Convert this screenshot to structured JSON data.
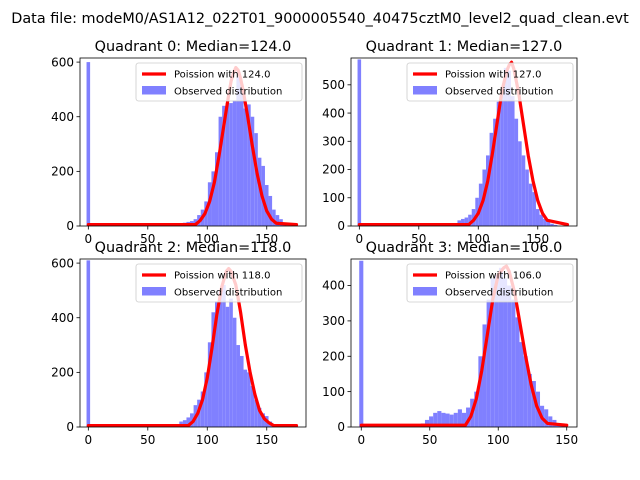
{
  "figure": {
    "title": "Data file: modeM0/AS1A12_022T01_9000005540_40475cztM0_level2_quad_clean.evt"
  },
  "colors": {
    "histogram": "#8080ff",
    "poisson": "#ff0000",
    "axis": "#000000",
    "background": "#ffffff"
  },
  "chart_data": [
    {
      "type": "bar",
      "title": "Quadrant 0: Median=124.0",
      "xlabel": "",
      "ylabel": "",
      "xlim": [
        -7,
        183
      ],
      "ylim": [
        0,
        615
      ],
      "xticks": [
        0,
        50,
        100,
        150
      ],
      "yticks": [
        0,
        200,
        400,
        600
      ],
      "grid": false,
      "legend_position": "upper right",
      "legend": [
        "Poission with 124.0",
        "Observed distribution"
      ],
      "bin_width": 3,
      "histogram": {
        "name": "Observed distribution",
        "x": [
          0,
          57,
          60,
          63,
          66,
          69,
          72,
          75,
          78,
          81,
          84,
          87,
          90,
          93,
          96,
          99,
          102,
          105,
          108,
          111,
          114,
          117,
          120,
          123,
          126,
          129,
          132,
          135,
          138,
          141,
          144,
          147,
          150,
          153,
          156,
          159,
          162,
          165
        ],
        "values": [
          600,
          2,
          3,
          3,
          4,
          5,
          6,
          8,
          10,
          12,
          15,
          18,
          25,
          40,
          60,
          90,
          160,
          200,
          270,
          400,
          440,
          450,
          450,
          460,
          545,
          520,
          430,
          445,
          400,
          340,
          250,
          220,
          150,
          110,
          60,
          40,
          25,
          10
        ]
      },
      "poisson": {
        "name": "Poission with 124.0",
        "x": [
          0,
          90,
          94,
          98,
          102,
          106,
          110,
          114,
          118,
          120,
          122,
          124,
          126,
          128,
          130,
          134,
          138,
          142,
          146,
          150,
          154,
          158,
          175
        ],
        "values": [
          5,
          5,
          20,
          45,
          90,
          160,
          260,
          370,
          480,
          530,
          560,
          580,
          570,
          540,
          500,
          400,
          290,
          190,
          110,
          55,
          25,
          10,
          5
        ]
      }
    },
    {
      "type": "bar",
      "title": "Quadrant 1: Median=127.0",
      "xlabel": "",
      "ylabel": "",
      "xlim": [
        -7,
        183
      ],
      "ylim": [
        0,
        595
      ],
      "xticks": [
        0,
        50,
        100,
        150
      ],
      "yticks": [
        0,
        100,
        200,
        300,
        400,
        500
      ],
      "grid": false,
      "legend_position": "upper right",
      "legend": [
        "Poission with 127.0",
        "Observed distribution"
      ],
      "bin_width": 3,
      "histogram": {
        "name": "Observed distribution",
        "x": [
          0,
          84,
          87,
          90,
          93,
          96,
          99,
          102,
          105,
          108,
          111,
          114,
          117,
          120,
          123,
          126,
          129,
          132,
          135,
          138,
          141,
          144,
          147,
          150,
          153,
          156,
          159,
          162,
          165
        ],
        "values": [
          590,
          20,
          25,
          30,
          40,
          60,
          100,
          150,
          200,
          250,
          330,
          380,
          440,
          470,
          560,
          550,
          460,
          380,
          300,
          250,
          200,
          150,
          120,
          60,
          40,
          25,
          15,
          8,
          4
        ]
      },
      "poisson": {
        "name": "Poission with 127.0",
        "x": [
          0,
          92,
          96,
          100,
          104,
          108,
          112,
          116,
          120,
          124,
          126,
          128,
          130,
          134,
          138,
          142,
          146,
          150,
          154,
          158,
          175
        ],
        "values": [
          5,
          5,
          20,
          45,
          90,
          160,
          260,
          370,
          480,
          550,
          570,
          580,
          555,
          470,
          360,
          250,
          160,
          90,
          45,
          20,
          5
        ]
      }
    },
    {
      "type": "bar",
      "title": "Quadrant 2: Median=118.0",
      "xlabel": "",
      "ylabel": "",
      "xlim": [
        -7,
        183
      ],
      "ylim": [
        0,
        615
      ],
      "xticks": [
        0,
        50,
        100,
        150
      ],
      "yticks": [
        0,
        200,
        400,
        600
      ],
      "grid": false,
      "legend_position": "upper right",
      "legend": [
        "Poission with 118.0",
        "Observed distribution"
      ],
      "bin_width": 3,
      "histogram": {
        "name": "Observed distribution",
        "x": [
          0,
          63,
          66,
          69,
          72,
          75,
          78,
          81,
          84,
          87,
          90,
          93,
          96,
          99,
          102,
          105,
          108,
          111,
          114,
          117,
          120,
          123,
          126,
          129,
          132,
          135,
          138,
          141,
          144,
          147,
          150,
          153,
          156,
          159,
          162
        ],
        "values": [
          610,
          3,
          5,
          6,
          8,
          10,
          20,
          25,
          35,
          50,
          80,
          100,
          130,
          200,
          310,
          420,
          460,
          500,
          520,
          440,
          470,
          400,
          300,
          260,
          210,
          200,
          150,
          100,
          70,
          50,
          40,
          20,
          10,
          5,
          2
        ]
      },
      "poisson": {
        "name": "Poission with 118.0",
        "x": [
          0,
          84,
          88,
          92,
          96,
          100,
          104,
          108,
          112,
          116,
          118,
          120,
          124,
          128,
          132,
          136,
          140,
          144,
          148,
          152,
          156,
          175
        ],
        "values": [
          5,
          5,
          20,
          50,
          100,
          180,
          290,
          410,
          510,
          570,
          580,
          570,
          520,
          420,
          300,
          200,
          120,
          60,
          30,
          15,
          5,
          5
        ]
      }
    },
    {
      "type": "bar",
      "title": "Quadrant 3: Median=106.0",
      "xlabel": "",
      "ylabel": "",
      "xlim": [
        -7.5,
        157.5
      ],
      "ylim": [
        0,
        475
      ],
      "xticks": [
        0,
        50,
        100,
        150
      ],
      "yticks": [
        0,
        100,
        200,
        300,
        400
      ],
      "grid": false,
      "legend_position": "upper right",
      "legend": [
        "Poission with 106.0",
        "Observed distribution"
      ],
      "bin_width": 3,
      "histogram": {
        "name": "Observed distribution",
        "x": [
          0,
          45,
          48,
          51,
          54,
          57,
          60,
          63,
          66,
          69,
          72,
          75,
          78,
          81,
          84,
          87,
          90,
          93,
          96,
          99,
          102,
          105,
          108,
          111,
          114,
          117,
          120,
          123,
          126,
          129,
          132,
          135,
          138,
          141,
          144,
          147
        ],
        "values": [
          470,
          10,
          20,
          30,
          40,
          45,
          40,
          38,
          35,
          40,
          50,
          40,
          55,
          80,
          100,
          200,
          290,
          360,
          420,
          430,
          450,
          420,
          400,
          360,
          310,
          240,
          200,
          150,
          130,
          100,
          60,
          50,
          30,
          20,
          10,
          5
        ]
      },
      "poisson": {
        "name": "Poission with 106.0",
        "x": [
          0,
          76,
          80,
          84,
          88,
          92,
          96,
          100,
          104,
          106,
          108,
          112,
          116,
          120,
          124,
          128,
          132,
          136,
          150
        ],
        "values": [
          5,
          5,
          30,
          80,
          160,
          260,
          360,
          430,
          450,
          455,
          440,
          380,
          290,
          200,
          120,
          60,
          25,
          10,
          5
        ]
      }
    }
  ]
}
